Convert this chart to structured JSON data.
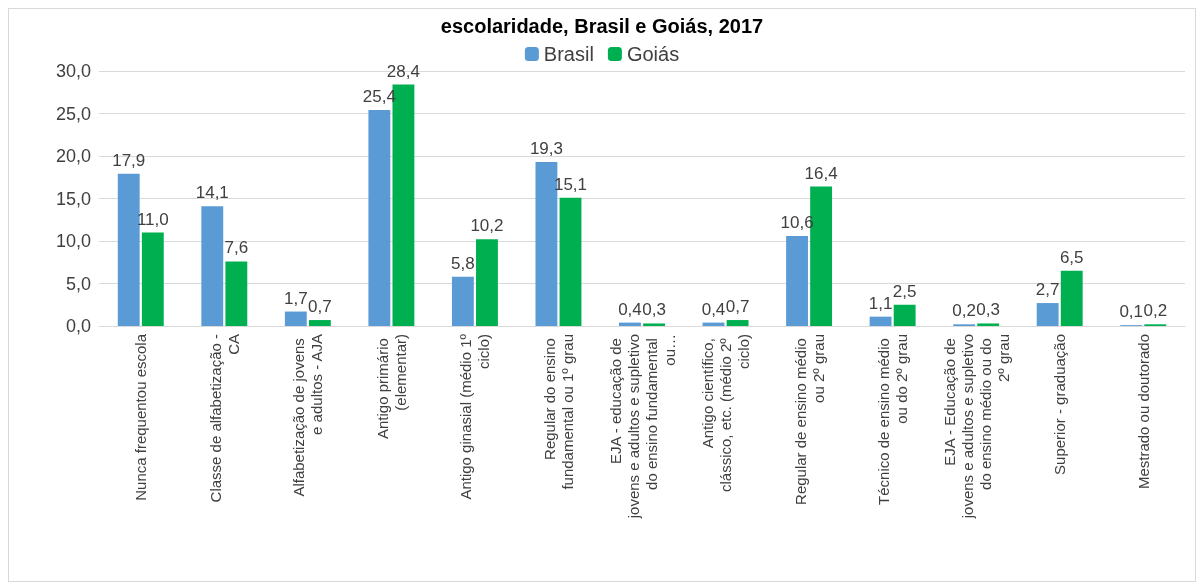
{
  "chart_data": {
    "type": "bar",
    "title": "escolaridade, Brasil e Goiás, 2017",
    "categories": [
      "Nunca frequentou escola",
      "Classe de alfabetização - CA",
      "Alfabetização de jovens e adultos - AJA",
      "Antigo primário (elementar)",
      "Antigo ginasial (médio 1º ciclo)",
      "Regular do ensino fundamental ou 1º grau",
      "EJA - educação de jovens e adultos e supletivo do ensino fundamental ou…",
      "Antigo científico, clássico, etc. (médio 2º ciclo)",
      "Regular de ensino médio ou 2º grau",
      "Técnico de ensino médio ou do 2º grau",
      "EJA - Educação de jovens e adultos e supletivo do ensino médio ou do 2º grau",
      "Superior - graduação",
      "Mestrado ou doutorado"
    ],
    "series": [
      {
        "name": "Brasil",
        "color": "#5b9bd5",
        "values": [
          17.9,
          14.1,
          1.7,
          25.4,
          5.8,
          19.3,
          0.4,
          0.4,
          10.6,
          1.1,
          0.2,
          2.7,
          0.1
        ],
        "value_labels": [
          "17,9",
          "14,1",
          "1,7",
          "25,4",
          "5,8",
          "19,3",
          "0,4",
          "0,4",
          "10,6",
          "1,1",
          "0,2",
          "2,7",
          "0,1"
        ]
      },
      {
        "name": "Goiás",
        "color": "#00b050",
        "values": [
          11.0,
          7.6,
          0.7,
          28.4,
          10.2,
          15.1,
          0.3,
          0.7,
          16.4,
          2.5,
          0.3,
          6.5,
          0.2
        ],
        "value_labels": [
          "11,0",
          "7,6",
          "0,7",
          "28,4",
          "10,2",
          "15,1",
          "0,3",
          "0,7",
          "16,4",
          "2,5",
          "0,3",
          "6,5",
          "0,2"
        ]
      }
    ],
    "ylim": [
      0,
      30
    ],
    "yticks": [
      {
        "value": 0,
        "label": "0,0"
      },
      {
        "value": 5,
        "label": "5,0"
      },
      {
        "value": 10,
        "label": "10,0"
      },
      {
        "value": 15,
        "label": "15,0"
      },
      {
        "value": 20,
        "label": "20,0"
      },
      {
        "value": 25,
        "label": "25,0"
      },
      {
        "value": 30,
        "label": "30,0"
      }
    ],
    "grid": "y",
    "legend": "top"
  }
}
